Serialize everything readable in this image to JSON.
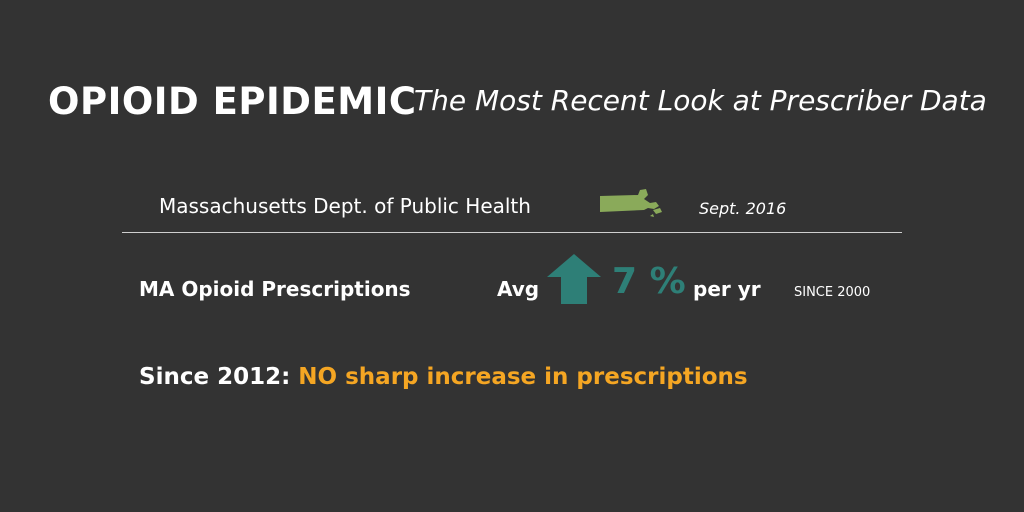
{
  "header": {
    "title": "OPIOID EPIDEMIC",
    "subtitle": "The Most Recent Look at Prescriber Data"
  },
  "source": {
    "agency": "Massachusetts Dept. of Public Health",
    "date": "Sept. 2016",
    "map_icon": "massachusetts-state-shape",
    "map_color": "#8aaa5a"
  },
  "stat": {
    "label": "MA Opioid Prescriptions",
    "prefix": "Avg",
    "arrow_icon": "up-arrow-icon",
    "arrow_color": "#2e7f77",
    "value": "7 %",
    "unit": "per yr",
    "since": "SINCE 2000"
  },
  "headline": {
    "lead": "Since 2012:",
    "highlight": "NO sharp increase in prescriptions",
    "highlight_color": "#f5a623"
  }
}
